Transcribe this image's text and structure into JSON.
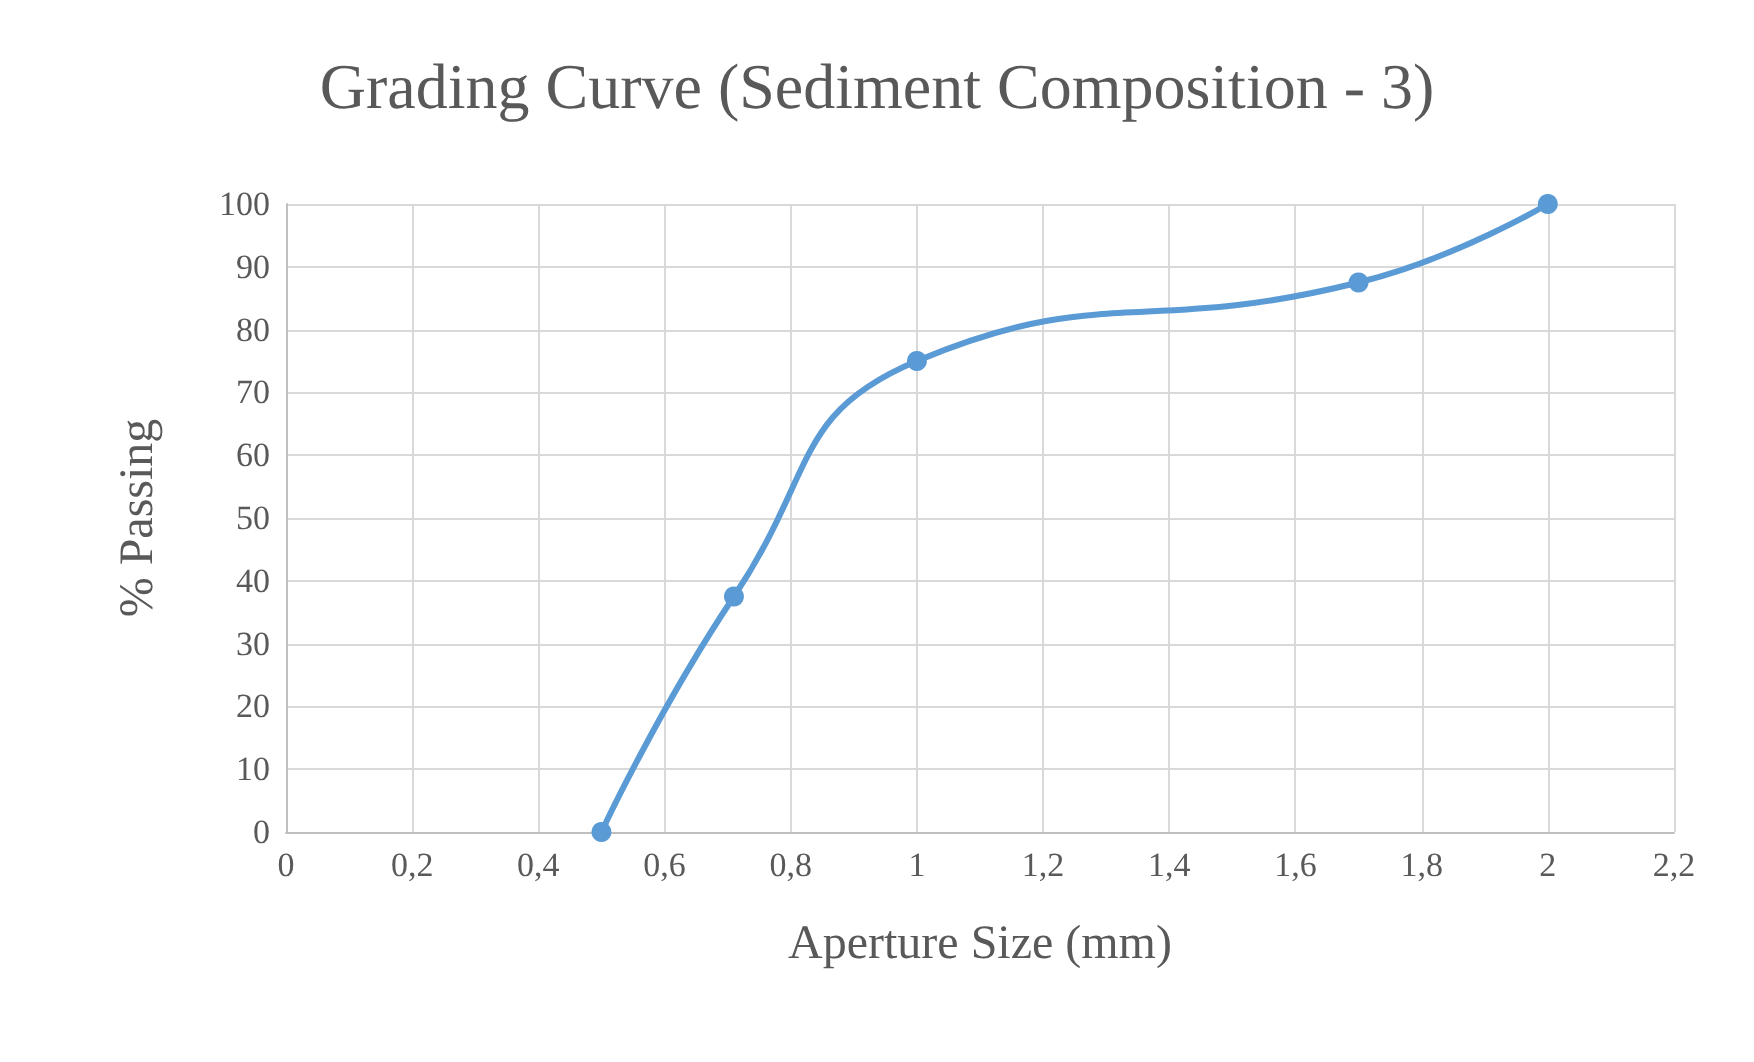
{
  "chart_data": {
    "type": "line",
    "title": "Grading Curve (Sediment Composition - 3)",
    "xlabel": "Aperture Size (mm)",
    "ylabel": "% Passing",
    "x": [
      0.5,
      0.71,
      1,
      1.7,
      2
    ],
    "series": [
      {
        "color": "#5b9bd5",
        "values": [
          0,
          37.5,
          75,
          87.5,
          100
        ]
      }
    ],
    "xlim": [
      0,
      2.2
    ],
    "xticks": [
      0,
      {
        "value": 0.2,
        "label": "0,2"
      },
      {
        "value": 0.4,
        "label": "0,4"
      },
      {
        "value": 0.6,
        "label": "0,6"
      },
      {
        "value": 0.8,
        "label": "0,8"
      },
      1,
      {
        "value": 1.2,
        "label": "1,2"
      },
      {
        "value": 1.4,
        "label": "1,4"
      },
      {
        "value": 1.6,
        "label": "1,6"
      },
      {
        "value": 1.8,
        "label": "1,8"
      },
      2,
      {
        "value": 2.2,
        "label": "2,2"
      }
    ],
    "ylim": [
      0,
      100
    ],
    "yticks": [
      0,
      10,
      20,
      30,
      40,
      50,
      60,
      70,
      80,
      90,
      100
    ],
    "grid": true,
    "marker": "circle",
    "line_style": "solid"
  }
}
